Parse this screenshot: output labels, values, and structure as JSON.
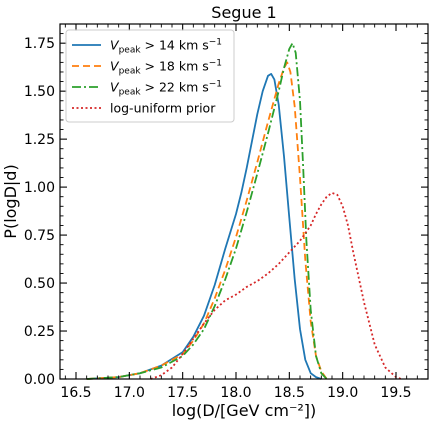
{
  "chart_data": {
    "type": "line",
    "title": "Segue 1",
    "xlabel": "log(D/[GeV cm⁻²])",
    "ylabel": "P(logD|d)",
    "xlim": [
      16.35,
      19.8
    ],
    "ylim": [
      0.0,
      1.85
    ],
    "x_ticks": [
      16.5,
      17.0,
      17.5,
      18.0,
      18.5,
      19.0,
      19.5
    ],
    "x_tick_labels": [
      "16.5",
      "17.0",
      "17.5",
      "18.0",
      "18.5",
      "19.0",
      "19.5"
    ],
    "y_ticks": [
      0.0,
      0.25,
      0.5,
      0.75,
      1.0,
      1.25,
      1.5,
      1.75
    ],
    "y_tick_labels": [
      "0.00",
      "0.25",
      "0.50",
      "0.75",
      "1.00",
      "1.25",
      "1.50",
      "1.75"
    ],
    "grid": false,
    "legend_position": "top-left",
    "legend_units": "km s⁻¹",
    "colors": {
      "blue": "#1f77b4",
      "orange": "#ff7f0e",
      "green": "#2ca02c",
      "red": "#d62728"
    },
    "series": [
      {
        "legend_prefix": "V",
        "legend_sub": "peak",
        "legend_suffix": " > 14 km s",
        "legend_sup": "−1",
        "color": "#1f77b4",
        "style": "solid",
        "x": [
          16.6,
          16.9,
          17.1,
          17.3,
          17.5,
          17.6,
          17.7,
          17.8,
          17.9,
          18.0,
          18.05,
          18.1,
          18.15,
          18.2,
          18.25,
          18.3,
          18.33,
          18.36,
          18.4,
          18.45,
          18.5,
          18.55,
          18.6,
          18.65,
          18.7,
          18.75,
          18.8
        ],
        "y": [
          0.0,
          0.01,
          0.03,
          0.07,
          0.14,
          0.22,
          0.33,
          0.49,
          0.68,
          0.86,
          0.97,
          1.1,
          1.24,
          1.38,
          1.5,
          1.58,
          1.59,
          1.56,
          1.43,
          1.16,
          0.84,
          0.52,
          0.26,
          0.1,
          0.03,
          0.01,
          0.0
        ]
      },
      {
        "legend_prefix": "V",
        "legend_sub": "peak",
        "legend_suffix": " > 18 km s",
        "legend_sup": "−1",
        "color": "#ff7f0e",
        "style": "dashed",
        "x": [
          16.6,
          16.9,
          17.1,
          17.3,
          17.5,
          17.6,
          17.7,
          17.8,
          17.9,
          18.0,
          18.1,
          18.2,
          18.3,
          18.4,
          18.45,
          18.48,
          18.51,
          18.55,
          18.6,
          18.65,
          18.7,
          18.75,
          18.8,
          18.85
        ],
        "y": [
          0.0,
          0.01,
          0.03,
          0.07,
          0.13,
          0.2,
          0.29,
          0.42,
          0.57,
          0.74,
          0.93,
          1.13,
          1.34,
          1.54,
          1.62,
          1.65,
          1.6,
          1.42,
          1.05,
          0.62,
          0.3,
          0.12,
          0.04,
          0.0
        ]
      },
      {
        "legend_prefix": "V",
        "legend_sub": "peak",
        "legend_suffix": " > 22 km s",
        "legend_sup": "−1",
        "color": "#2ca02c",
        "style": "dashdot",
        "x": [
          16.6,
          16.9,
          17.1,
          17.3,
          17.5,
          17.6,
          17.7,
          17.8,
          17.9,
          18.0,
          18.1,
          18.2,
          18.3,
          18.4,
          18.45,
          18.5,
          18.53,
          18.56,
          18.6,
          18.63,
          18.66,
          18.7,
          18.75,
          18.8,
          18.85
        ],
        "y": [
          0.0,
          0.01,
          0.03,
          0.06,
          0.12,
          0.18,
          0.26,
          0.38,
          0.52,
          0.68,
          0.87,
          1.07,
          1.28,
          1.5,
          1.62,
          1.72,
          1.75,
          1.7,
          1.45,
          1.1,
          0.72,
          0.36,
          0.12,
          0.03,
          0.0
        ]
      },
      {
        "name": "log-uniform prior",
        "color": "#d62728",
        "style": "dotted",
        "x": [
          17.2,
          17.3,
          17.4,
          17.5,
          17.6,
          17.7,
          17.8,
          17.9,
          18.0,
          18.1,
          18.2,
          18.3,
          18.4,
          18.5,
          18.6,
          18.7,
          18.75,
          18.8,
          18.85,
          18.9,
          18.95,
          19.0,
          19.05,
          19.1,
          19.2,
          19.3,
          19.4,
          19.5,
          19.55
        ],
        "y": [
          0.0,
          0.02,
          0.06,
          0.13,
          0.21,
          0.29,
          0.36,
          0.41,
          0.44,
          0.48,
          0.51,
          0.55,
          0.6,
          0.66,
          0.72,
          0.8,
          0.86,
          0.91,
          0.95,
          0.97,
          0.96,
          0.9,
          0.8,
          0.66,
          0.4,
          0.18,
          0.06,
          0.01,
          0.0
        ]
      }
    ]
  }
}
